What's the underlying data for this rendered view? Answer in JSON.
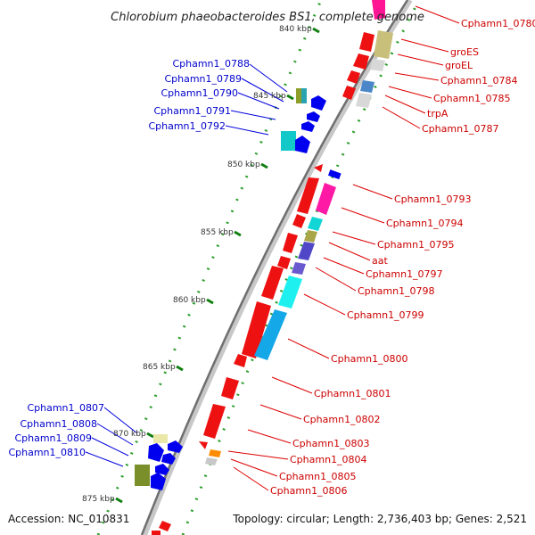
{
  "title": "Chlorobium phaeobacteroides BS1, complete genome",
  "accession": "Accession: NC_010831",
  "summary": "Topology: circular; Length: 2,736,403 bp; Genes: 2,521",
  "colors": {
    "label_left": "#0000cc",
    "label_right": "#cc0000",
    "backbone": "#7f7f7f",
    "tick_major": "#0f7f0f",
    "tick_minor": "#2e9e2e"
  },
  "scale_ticks": [
    "840 kbp",
    "845 kbp",
    "850 kbp",
    "855 kbp",
    "860 kbp",
    "865 kbp",
    "870 kbp",
    "875 kbp"
  ],
  "genes_left": [
    "Cphamn1_0788",
    "Cphamn1_0789",
    "Cphamn1_0790",
    "Cphamn1_0791",
    "Cphamn1_0792",
    "Cphamn1_0807",
    "Cphamn1_0808",
    "Cphamn1_0809",
    "Cphamn1_0810"
  ],
  "genes_right": [
    "Cphamn1_0780",
    "groES",
    "groEL",
    "Cphamn1_0784",
    "Cphamn1_0785",
    "trpA",
    "Cphamn1_0787",
    "Cphamn1_0793",
    "Cphamn1_0794",
    "Cphamn1_0795",
    "aat",
    "Cphamn1_0797",
    "Cphamn1_0798",
    "Cphamn1_0799",
    "Cphamn1_0800",
    "Cphamn1_0801",
    "Cphamn1_0802",
    "Cphamn1_0803",
    "Cphamn1_0804",
    "Cphamn1_0805",
    "Cphamn1_0806"
  ]
}
